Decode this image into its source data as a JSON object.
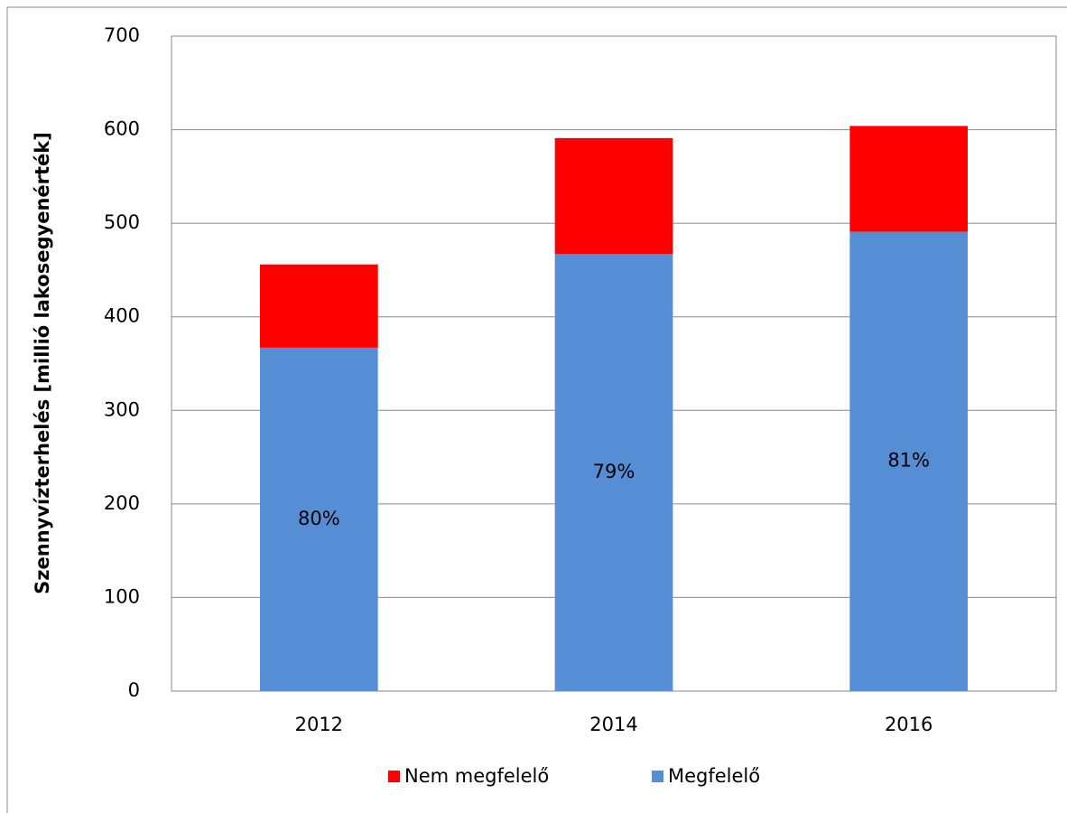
{
  "chart_data": {
    "type": "stacked_bar",
    "y_label": "Szennyvízterhelés [millió lakosegyenérték]",
    "categories": [
      "2012",
      "2014",
      "2016"
    ],
    "series": [
      {
        "name": "Megfelelő",
        "color": "#558ed5",
        "values": [
          367,
          467,
          491
        ]
      },
      {
        "name": "Nem megfelelő",
        "color": "#ff0000",
        "values": [
          89,
          124,
          113
        ]
      }
    ],
    "annotations": [
      "80%",
      "79%",
      "81%"
    ],
    "ylim": [
      0,
      700
    ],
    "yticks": [
      0,
      100,
      200,
      300,
      400,
      500,
      600,
      700
    ],
    "grid": true,
    "legend": "bottom"
  }
}
